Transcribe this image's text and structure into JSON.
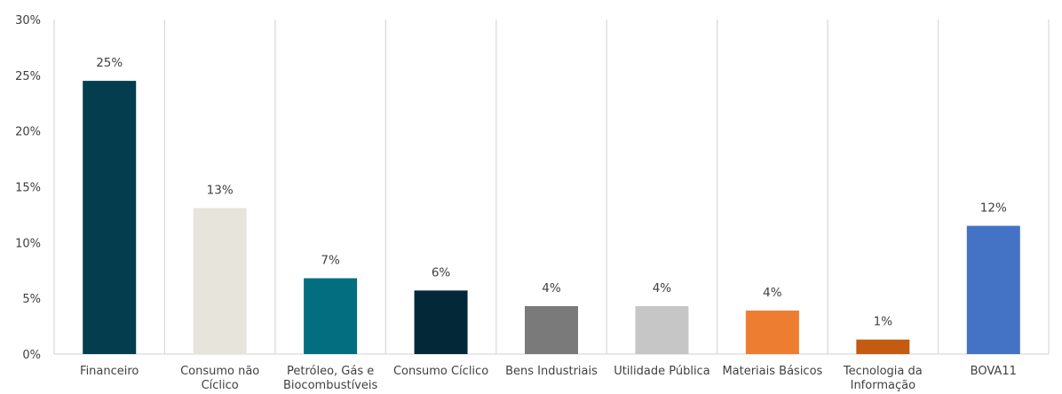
{
  "chart_data": {
    "type": "bar",
    "categories": [
      [
        "Financeiro"
      ],
      [
        "Consumo não",
        "Cíclico"
      ],
      [
        "Petróleo, Gás e",
        "Biocombustíveis"
      ],
      [
        "Consumo Cíclico"
      ],
      [
        "Bens Industriais"
      ],
      [
        "Utilidade Pública"
      ],
      [
        "Materiais Básicos"
      ],
      [
        "Tecnologia da",
        "Informação"
      ],
      [
        "BOVA11"
      ]
    ],
    "values": [
      24.5,
      13.1,
      6.8,
      5.7,
      4.3,
      4.3,
      3.9,
      1.3,
      11.5
    ],
    "data_labels": [
      "25%",
      "13%",
      "7%",
      "6%",
      "4%",
      "4%",
      "4%",
      "1%",
      "12%"
    ],
    "colors": [
      "#033d4e",
      "#e7e5db",
      "#036e80",
      "#032838",
      "#7a7a7a",
      "#c6c6c6",
      "#ed7d31",
      "#c55a11",
      "#4472c4"
    ],
    "ylim": [
      0,
      30
    ],
    "yticks": [
      0,
      5,
      10,
      15,
      20,
      25,
      30
    ],
    "ytick_labels": [
      "0%",
      "5%",
      "10%",
      "15%",
      "20%",
      "25%",
      "30%"
    ],
    "grid": "vertical category separators",
    "title": "",
    "xlabel": "",
    "ylabel": ""
  }
}
